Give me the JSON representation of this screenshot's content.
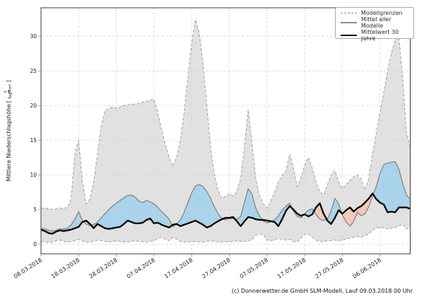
{
  "meta": {
    "footer": "(c) Donnerwetter.de GmbH SLM-Modell, Lauf 09.03.2018 00 Uhr"
  },
  "y_axis": {
    "label_text": "Mittlere Niederschlagshöhe",
    "unit_bracket_open": "[",
    "unit_numerator": "L",
    "unit_denominator": "Tag×m²",
    "unit_bracket_close": "]",
    "ticks": [
      0,
      5,
      10,
      15,
      20,
      25,
      30
    ]
  },
  "x_axis": {
    "tick_days": [
      0,
      10,
      20,
      30,
      40,
      50,
      60,
      70,
      80,
      90
    ],
    "tick_labels": [
      "08.03.2018",
      "18.03.2018",
      "28.03.2018",
      "07.04.2018",
      "17.04.2018",
      "27.04.2018",
      "07.05.2018",
      "17.05.2018",
      "27.05.2018",
      "06.06.2018"
    ]
  },
  "legend": {
    "items": [
      {
        "label": "Modellgrenzen",
        "style": "dashed-gray"
      },
      {
        "label": "Mittel aller Modelle",
        "style": "solid-gray"
      },
      {
        "label": "Mittelwert 30 Jahre",
        "style": "solid-black-thick"
      }
    ]
  },
  "colors": {
    "band_fill": "#e1e1e1",
    "band_border": "#a0a0a0",
    "above_normal_fill": "#a9d3ea",
    "below_normal_fill": "#f2c9bc",
    "model_mean_line": "#8a8a8a",
    "climate_line": "#000000",
    "grid": "#d4d4d4",
    "spine": "#3a3a3a",
    "tick": "#9a9a9a"
  },
  "chart_data": {
    "type": "line",
    "title": "",
    "xlabel": "",
    "ylabel": "Mittlere Niederschlagshöhe [L/(Tag×m²)]",
    "x_unit": "Tage ab 08.03.2018",
    "x_range": [
      0,
      98
    ],
    "ylim": [
      -1.4,
      34.1
    ],
    "grid": true,
    "legend_position": "top-right",
    "series": [
      {
        "name": "Modellgrenzen (obere Grenze)",
        "role": "upper_bound",
        "line": "dashed",
        "values": [
          5.2,
          5.2,
          5.1,
          5.0,
          5.1,
          5.2,
          5.2,
          5.3,
          6.5,
          13.0,
          15.0,
          9.0,
          5.8,
          6.5,
          9.0,
          13.0,
          17.0,
          19.3,
          19.6,
          19.8,
          19.6,
          19.8,
          20.0,
          20.1,
          20.2,
          20.2,
          20.3,
          20.5,
          20.6,
          20.8,
          20.9,
          19.0,
          16.5,
          14.5,
          12.5,
          11.2,
          12.5,
          15.0,
          19.0,
          24.0,
          29.0,
          32.4,
          30.5,
          26.0,
          20.0,
          14.0,
          10.0,
          7.8,
          6.6,
          6.9,
          7.3,
          6.9,
          7.6,
          9.5,
          14.0,
          19.4,
          14.5,
          9.5,
          7.0,
          5.8,
          5.2,
          6.2,
          7.5,
          9.0,
          9.9,
          10.5,
          13.0,
          11.0,
          8.3,
          9.5,
          11.5,
          12.5,
          11.0,
          9.0,
          7.6,
          7.1,
          8.5,
          10.0,
          10.6,
          9.0,
          8.0,
          8.6,
          9.2,
          9.7,
          10.0,
          9.3,
          7.8,
          9.5,
          13.0,
          16.0,
          19.0,
          22.0,
          25.0,
          27.5,
          29.5,
          29.9,
          24.0,
          16.0,
          14.0
        ]
      },
      {
        "name": "Modellgrenzen (untere Grenze)",
        "role": "lower_bound",
        "line": "dashed",
        "values": [
          0.4,
          0.3,
          0.25,
          0.3,
          0.5,
          0.6,
          0.4,
          0.3,
          0.35,
          0.5,
          0.7,
          0.5,
          0.3,
          0.3,
          0.4,
          0.6,
          0.5,
          0.4,
          0.3,
          0.35,
          0.5,
          0.4,
          0.3,
          0.3,
          0.4,
          0.5,
          0.4,
          0.35,
          0.3,
          0.4,
          0.5,
          0.8,
          1.0,
          0.7,
          0.5,
          1.0,
          0.7,
          0.4,
          0.3,
          0.3,
          0.35,
          0.4,
          0.3,
          0.3,
          0.4,
          0.5,
          0.4,
          0.3,
          0.3,
          0.35,
          0.3,
          0.4,
          0.5,
          0.4,
          0.4,
          0.5,
          0.6,
          1.3,
          1.5,
          1.4,
          0.6,
          0.5,
          0.6,
          0.8,
          0.7,
          0.6,
          0.7,
          0.4,
          0.35,
          0.8,
          1.4,
          1.5,
          1.0,
          0.6,
          0.4,
          0.4,
          0.5,
          0.5,
          0.6,
          0.5,
          0.6,
          0.7,
          0.9,
          1.0,
          1.1,
          1.0,
          1.2,
          1.5,
          2.0,
          2.4,
          2.3,
          2.4,
          2.2,
          2.3,
          2.4,
          2.6,
          2.9,
          2.2,
          2.5
        ]
      },
      {
        "name": "Mittel aller Modelle",
        "role": "model_mean",
        "line": "solid",
        "values": [
          2.3,
          2.2,
          2.0,
          1.9,
          2.0,
          2.2,
          2.2,
          2.3,
          2.8,
          3.6,
          4.7,
          3.4,
          2.9,
          2.7,
          2.8,
          3.2,
          3.8,
          4.4,
          5.0,
          5.5,
          5.9,
          6.3,
          6.7,
          7.0,
          7.1,
          6.8,
          6.2,
          6.0,
          6.3,
          6.1,
          5.8,
          5.3,
          4.7,
          4.2,
          3.6,
          2.5,
          2.9,
          3.5,
          4.6,
          6.0,
          7.4,
          8.4,
          8.6,
          8.3,
          7.6,
          6.6,
          5.4,
          4.4,
          3.7,
          3.5,
          3.7,
          3.7,
          3.6,
          4.0,
          6.0,
          8.0,
          7.2,
          5.2,
          4.1,
          3.3,
          3.1,
          3.2,
          3.5,
          4.1,
          4.9,
          5.5,
          5.9,
          4.8,
          4.0,
          3.8,
          4.4,
          4.9,
          5.1,
          4.3,
          3.6,
          3.4,
          3.6,
          4.8,
          6.6,
          5.8,
          4.2,
          3.2,
          2.6,
          3.3,
          4.6,
          4.1,
          4.4,
          5.4,
          7.0,
          8.3,
          10.2,
          11.5,
          11.7,
          11.8,
          11.9,
          10.8,
          8.8,
          7.1,
          6.5
        ]
      },
      {
        "name": "Mittelwert 30 Jahre",
        "role": "climate_mean_30y",
        "line": "solid-thick",
        "values": [
          2.1,
          1.9,
          1.6,
          1.5,
          1.8,
          2.0,
          1.9,
          2.0,
          2.1,
          2.3,
          2.5,
          3.2,
          3.4,
          2.9,
          2.3,
          2.9,
          2.6,
          2.3,
          2.2,
          2.3,
          2.4,
          2.5,
          2.9,
          3.4,
          3.2,
          3.0,
          3.0,
          3.1,
          3.5,
          3.7,
          3.0,
          3.1,
          2.8,
          2.6,
          2.4,
          2.8,
          2.9,
          2.6,
          2.8,
          3.0,
          3.2,
          3.4,
          3.1,
          2.8,
          2.4,
          2.6,
          3.0,
          3.3,
          3.6,
          3.8,
          3.8,
          3.9,
          3.3,
          2.6,
          3.3,
          3.9,
          3.8,
          3.6,
          3.5,
          3.5,
          3.4,
          3.3,
          3.2,
          2.6,
          3.6,
          4.8,
          5.5,
          5.0,
          4.4,
          4.1,
          4.3,
          4.0,
          4.3,
          5.3,
          5.9,
          4.4,
          3.4,
          2.9,
          3.8,
          4.9,
          4.4,
          4.9,
          5.3,
          4.7,
          5.2,
          5.5,
          6.0,
          6.6,
          7.3,
          6.5,
          6.0,
          5.7,
          4.6,
          4.7,
          4.6,
          5.3,
          5.3,
          5.3,
          5.1
        ]
      }
    ],
    "fills": {
      "band": "Bereich zwischen Modellgrenzen (grau)",
      "above_normal": "Mittel aller Modelle über Mittelwert 30 Jahre (blau)",
      "below_normal": "Mittel aller Modelle unter Mittelwert 30 Jahre (rosa)"
    }
  }
}
